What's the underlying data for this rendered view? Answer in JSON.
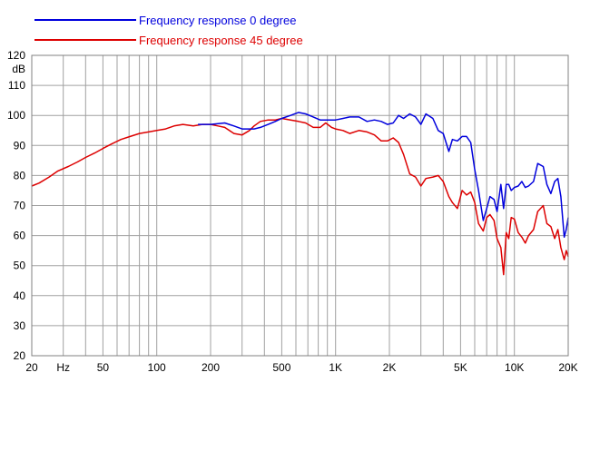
{
  "chart_data": {
    "type": "line",
    "title": "",
    "xlabel": "",
    "ylabel": "dB",
    "x_scale": "log",
    "xlim": [
      20,
      20000
    ],
    "ylim": [
      20,
      120
    ],
    "grid": true,
    "legend_position": "top-left",
    "x_tick_labels": [
      {
        "value": 20,
        "label": "20"
      },
      {
        "value": 30,
        "label": "Hz"
      },
      {
        "value": 50,
        "label": "50"
      },
      {
        "value": 100,
        "label": "100"
      },
      {
        "value": 200,
        "label": "200"
      },
      {
        "value": 500,
        "label": "500"
      },
      {
        "value": 1000,
        "label": "1K"
      },
      {
        "value": 2000,
        "label": "2K"
      },
      {
        "value": 5000,
        "label": "5K"
      },
      {
        "value": 10000,
        "label": "10K"
      },
      {
        "value": 20000,
        "label": "20K"
      }
    ],
    "y_tick_labels": [
      {
        "value": 20,
        "label": "20"
      },
      {
        "value": 30,
        "label": "30"
      },
      {
        "value": 40,
        "label": "40"
      },
      {
        "value": 50,
        "label": "50"
      },
      {
        "value": 60,
        "label": "60"
      },
      {
        "value": 70,
        "label": "70"
      },
      {
        "value": 80,
        "label": "80"
      },
      {
        "value": 90,
        "label": "90"
      },
      {
        "value": 100,
        "label": "100"
      },
      {
        "value": 110,
        "label": "110"
      },
      {
        "value": 120,
        "label": "120"
      }
    ],
    "series": [
      {
        "name": "Frequency response 0 degree",
        "color": "#0000dd",
        "x": [
          170,
          200,
          240,
          270,
          300,
          330,
          350,
          380,
          420,
          460,
          500,
          560,
          620,
          680,
          750,
          820,
          880,
          950,
          1000,
          1100,
          1200,
          1350,
          1500,
          1650,
          1800,
          1950,
          2100,
          2250,
          2400,
          2600,
          2800,
          3000,
          3200,
          3500,
          3750,
          4000,
          4300,
          4500,
          4800,
          5100,
          5400,
          5700,
          6000,
          6300,
          6700,
          7000,
          7300,
          7700,
          8000,
          8400,
          8700,
          9000,
          9300,
          9600,
          10000,
          10500,
          11000,
          11500,
          12000,
          12800,
          13500,
          14500,
          15200,
          16000,
          16800,
          17500,
          18200,
          19000,
          19500,
          20000
        ],
        "y": [
          97,
          97,
          97.5,
          96.5,
          95.5,
          95.5,
          95.5,
          96,
          97,
          98,
          99,
          100,
          101,
          100.5,
          99.5,
          98.5,
          98.5,
          98.5,
          98.5,
          99,
          99.5,
          99.5,
          98,
          98.5,
          98,
          97,
          97.5,
          100,
          99,
          100.5,
          99.5,
          97,
          100.5,
          99,
          95,
          94,
          88,
          92,
          91.5,
          93,
          93,
          91,
          82,
          75,
          65,
          69,
          73,
          72,
          68,
          77,
          69,
          77,
          77,
          75,
          76,
          76.5,
          78,
          76,
          76.5,
          78,
          84,
          83,
          77,
          74,
          78,
          79,
          73,
          59.5,
          62,
          66
        ]
      },
      {
        "name": "Frequency response 45 degree",
        "color": "#dd0000",
        "x": [
          20,
          22,
          25,
          28,
          32,
          36,
          40,
          45,
          50,
          56,
          63,
          71,
          80,
          90,
          100,
          112,
          125,
          140,
          160,
          180,
          200,
          220,
          240,
          270,
          300,
          330,
          350,
          380,
          420,
          460,
          500,
          560,
          620,
          680,
          750,
          820,
          880,
          950,
          1000,
          1100,
          1200,
          1350,
          1500,
          1650,
          1800,
          1950,
          2100,
          2250,
          2400,
          2600,
          2800,
          3000,
          3200,
          3500,
          3750,
          4000,
          4300,
          4500,
          4800,
          5100,
          5400,
          5700,
          6000,
          6300,
          6700,
          7000,
          7300,
          7700,
          8000,
          8400,
          8700,
          9000,
          9300,
          9600,
          10000,
          10500,
          11000,
          11500,
          12000,
          12800,
          13500,
          14500,
          15200,
          16000,
          16800,
          17500,
          18200,
          19000,
          19500,
          20000
        ],
        "y": [
          76.5,
          77.5,
          79.5,
          81.5,
          83,
          84.5,
          86,
          87.5,
          89,
          90.5,
          92,
          93,
          94,
          94.5,
          95,
          95.5,
          96.5,
          97,
          96.5,
          97,
          97,
          96.5,
          96,
          94,
          93.5,
          95,
          96.5,
          98,
          98.5,
          98.5,
          99,
          98.5,
          98,
          97.5,
          96,
          96,
          97.5,
          96,
          95.5,
          95,
          94,
          95,
          94.5,
          93.5,
          91.5,
          91.5,
          92.5,
          91,
          87,
          80.5,
          79.5,
          76.5,
          79,
          79.5,
          80,
          78,
          73,
          71,
          69,
          75,
          73.5,
          74.5,
          71,
          64,
          61.5,
          66,
          67,
          65,
          59,
          56,
          47,
          61,
          59,
          66,
          65.5,
          61,
          59.5,
          57.5,
          60,
          62,
          68,
          70,
          64,
          63,
          59,
          62,
          56,
          52,
          55,
          53
        ]
      }
    ]
  }
}
